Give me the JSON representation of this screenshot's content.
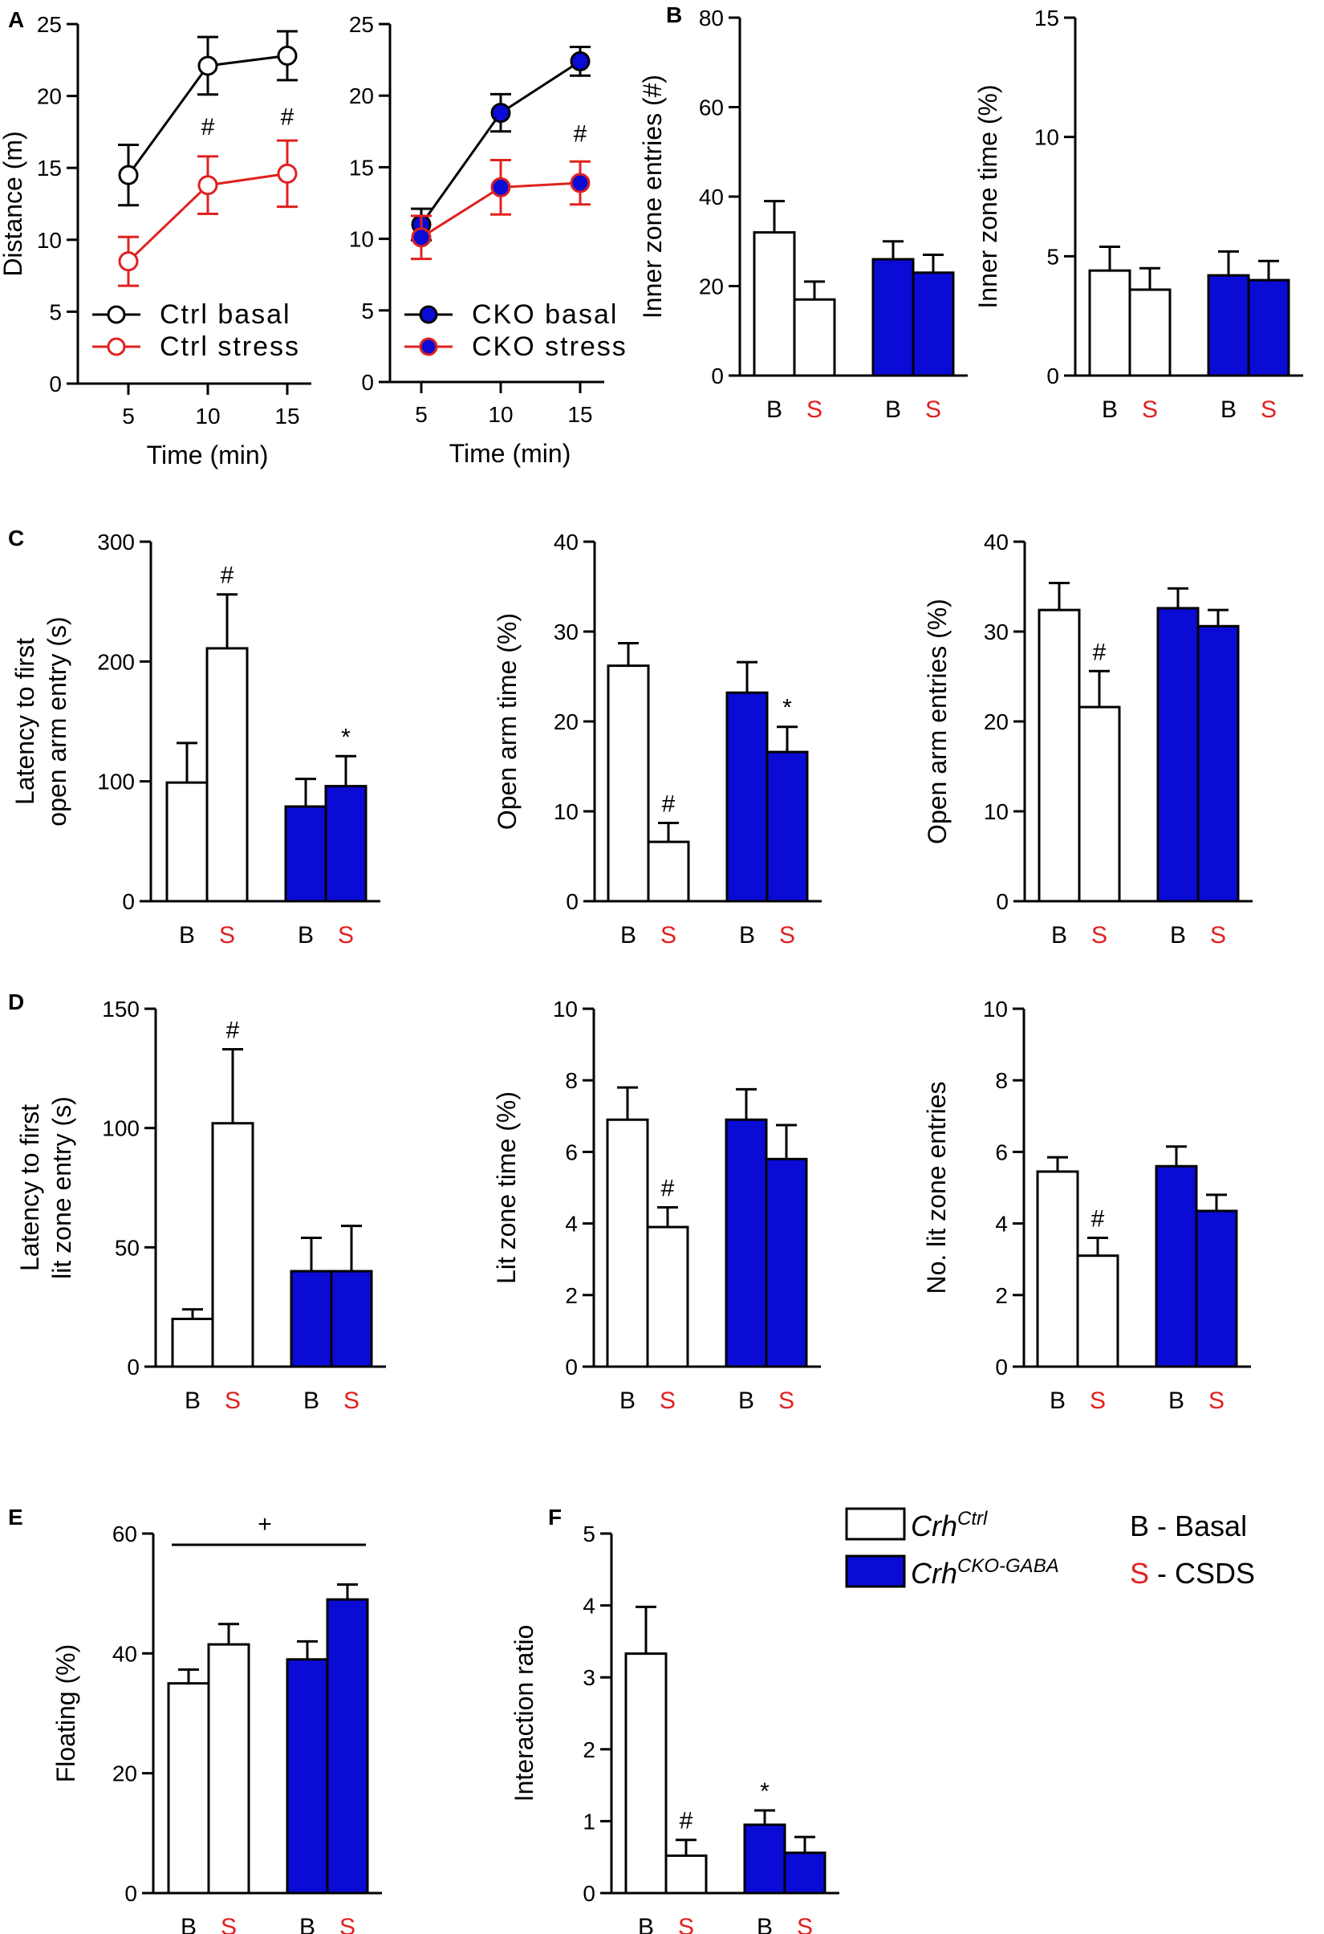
{
  "colors": {
    "ctrl": "#ffffff",
    "cko": "#0b0bd6",
    "stress": "#e0211f",
    "ink": "#000000",
    "basal_text": "#000000",
    "stress_text": "#e0211f"
  },
  "legend": {
    "ctrl_base": "Crh",
    "ctrl_sup": "Ctrl",
    "cko_base": "Crh",
    "cko_sup": "CKO-GABA",
    "basal_key": "B",
    "basal_label": " - Basal",
    "stress_key": "S",
    "stress_label": " - CSDS"
  },
  "chart_data": [
    {
      "panel": "A",
      "id": "a1",
      "type": "line",
      "xlabel": "Time (min)",
      "ylabel": "Distance (m)",
      "x": [
        5,
        10,
        15
      ],
      "ylim": [
        0,
        25
      ],
      "yticks": [
        0,
        5,
        10,
        15,
        20,
        25
      ],
      "series": [
        {
          "name": "Ctrl basal",
          "values": [
            14.5,
            22.1,
            22.8
          ],
          "errors": [
            2.1,
            2.0,
            1.7
          ],
          "line": "#000000",
          "fill": "#ffffff"
        },
        {
          "name": "Ctrl stress",
          "values": [
            8.5,
            13.8,
            14.6
          ],
          "errors": [
            1.7,
            2.0,
            2.3
          ],
          "line": "#e0211f",
          "fill": "#ffffff"
        }
      ],
      "annotations": [
        {
          "x": 10,
          "text": "#",
          "y": 17.3
        },
        {
          "x": 15,
          "text": "#",
          "y": 18.0
        }
      ]
    },
    {
      "panel": "",
      "id": "a2",
      "type": "line",
      "xlabel": "Time (min)",
      "ylabel": "",
      "x": [
        5,
        10,
        15
      ],
      "ylim": [
        0,
        25
      ],
      "yticks": [
        0,
        5,
        10,
        15,
        20,
        25
      ],
      "series": [
        {
          "name": "CKO basal",
          "values": [
            11.0,
            18.8,
            22.4
          ],
          "errors": [
            1.1,
            1.3,
            1.0
          ],
          "line": "#000000",
          "fill": "#0b0bd6"
        },
        {
          "name": "CKO stress",
          "values": [
            10.1,
            13.6,
            13.9
          ],
          "errors": [
            1.5,
            1.9,
            1.5
          ],
          "line": "#e0211f",
          "fill": "#0b0bd6"
        }
      ],
      "annotations": [
        {
          "x": 15,
          "text": "#",
          "y": 16.8
        }
      ]
    },
    {
      "panel": "B",
      "id": "b1",
      "type": "bar",
      "categories": [
        "B",
        "S",
        "B",
        "S"
      ],
      "ylabel": "Inner zone entries (#)",
      "ylim": [
        0,
        80
      ],
      "yticks": [
        0,
        20,
        40,
        60,
        80
      ],
      "values": [
        32,
        17,
        26,
        23
      ],
      "errors": [
        7,
        4,
        4,
        4
      ],
      "annotations": [
        "",
        "",
        "",
        ""
      ]
    },
    {
      "panel": "",
      "id": "b2",
      "type": "bar",
      "categories": [
        "B",
        "S",
        "B",
        "S"
      ],
      "ylabel": "Inner zone time (%)",
      "ylim": [
        0,
        15
      ],
      "yticks": [
        0,
        5,
        10,
        15
      ],
      "values": [
        4.4,
        3.6,
        4.2,
        4.0
      ],
      "errors": [
        1.0,
        0.9,
        1.0,
        0.8
      ],
      "annotations": [
        "",
        "",
        "",
        ""
      ]
    },
    {
      "panel": "C",
      "id": "c1",
      "type": "bar",
      "categories": [
        "B",
        "S",
        "B",
        "S"
      ],
      "ylabel": [
        "Latency to first",
        "open arm entry (s)"
      ],
      "ylim": [
        0,
        300
      ],
      "yticks": [
        0,
        100,
        200,
        300
      ],
      "values": [
        99,
        211,
        79,
        96
      ],
      "errors": [
        33,
        45,
        23,
        25
      ],
      "annotations": [
        "",
        "#",
        "",
        "*"
      ]
    },
    {
      "panel": "",
      "id": "c2",
      "type": "bar",
      "categories": [
        "B",
        "S",
        "B",
        "S"
      ],
      "ylabel": "Open arm time (%)",
      "ylim": [
        0,
        40
      ],
      "yticks": [
        0,
        10,
        20,
        30,
        40
      ],
      "values": [
        26.2,
        6.6,
        23.2,
        16.6
      ],
      "errors": [
        2.5,
        2.1,
        3.4,
        2.8
      ],
      "annotations": [
        "",
        "#",
        "",
        "*"
      ]
    },
    {
      "panel": "",
      "id": "c3",
      "type": "bar",
      "categories": [
        "B",
        "S",
        "B",
        "S"
      ],
      "ylabel": "Open arm entries  (%)",
      "ylim": [
        0,
        40
      ],
      "yticks": [
        0,
        10,
        20,
        30,
        40
      ],
      "values": [
        32.4,
        21.6,
        32.6,
        30.6
      ],
      "errors": [
        3.0,
        4.0,
        2.2,
        1.8
      ],
      "annotations": [
        "",
        "#",
        "",
        ""
      ]
    },
    {
      "panel": "D",
      "id": "d1",
      "type": "bar",
      "categories": [
        "B",
        "S",
        "B",
        "S"
      ],
      "ylabel": [
        "Latency to first",
        "lit zone entry (s)"
      ],
      "ylim": [
        0,
        150
      ],
      "yticks": [
        0,
        50,
        100,
        150
      ],
      "values": [
        20,
        102,
        40,
        40
      ],
      "errors": [
        4,
        31,
        14,
        19
      ],
      "annotations": [
        "",
        "#",
        "",
        ""
      ]
    },
    {
      "panel": "",
      "id": "d2",
      "type": "bar",
      "categories": [
        "B",
        "S",
        "B",
        "S"
      ],
      "ylabel": "Lit zone time (%)",
      "ylim": [
        0,
        10
      ],
      "yticks": [
        0,
        2,
        4,
        6,
        8,
        10
      ],
      "values": [
        6.9,
        3.9,
        6.9,
        5.8
      ],
      "errors": [
        0.9,
        0.55,
        0.85,
        0.95
      ],
      "annotations": [
        "",
        "#",
        "",
        ""
      ]
    },
    {
      "panel": "",
      "id": "d3",
      "type": "bar",
      "categories": [
        "B",
        "S",
        "B",
        "S"
      ],
      "ylabel": "No. lit zone entries",
      "ylim": [
        0,
        10
      ],
      "yticks": [
        0,
        2,
        4,
        6,
        8,
        10
      ],
      "values": [
        5.45,
        3.1,
        5.6,
        4.35
      ],
      "errors": [
        0.4,
        0.5,
        0.55,
        0.45
      ],
      "annotations": [
        "",
        "#",
        "",
        ""
      ]
    },
    {
      "panel": "E",
      "id": "e1",
      "type": "bar",
      "categories": [
        "B",
        "S",
        "B",
        "S"
      ],
      "ylabel": "Floating (%)",
      "ylim": [
        0,
        60
      ],
      "yticks": [
        0,
        20,
        40,
        60
      ],
      "values": [
        35,
        41.5,
        39,
        49
      ],
      "errors": [
        2.3,
        3.4,
        3.0,
        2.5
      ],
      "annotations": [
        "",
        "",
        "",
        ""
      ],
      "bracket": "+"
    },
    {
      "panel": "F",
      "id": "f1",
      "type": "bar",
      "categories": [
        "B",
        "S",
        "B",
        "S"
      ],
      "ylabel": "Interaction ratio",
      "ylim": [
        0,
        5
      ],
      "yticks": [
        0,
        1,
        2,
        3,
        4,
        5
      ],
      "values": [
        3.33,
        0.52,
        0.95,
        0.56
      ],
      "errors": [
        0.65,
        0.22,
        0.2,
        0.22
      ],
      "annotations": [
        "",
        "#",
        "*",
        ""
      ]
    }
  ]
}
